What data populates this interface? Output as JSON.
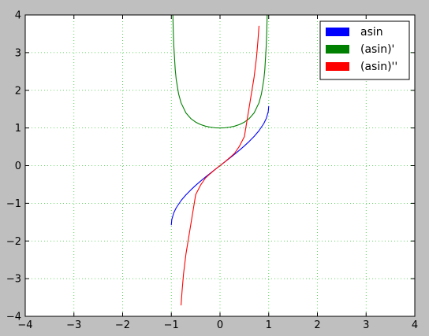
{
  "chart_data": {
    "type": "line",
    "title": "",
    "xlabel": "",
    "ylabel": "",
    "xlim": [
      -4,
      4
    ],
    "ylim": [
      -4,
      4
    ],
    "grid": true,
    "legend_position": "top-right",
    "x_ticks": [
      -4,
      -3,
      -2,
      -1,
      0,
      1,
      2,
      3,
      4
    ],
    "y_ticks": [
      -4,
      -3,
      -2,
      -1,
      0,
      1,
      2,
      3,
      4
    ],
    "x_tick_labels": [
      "−4",
      "−3",
      "−2",
      "−1",
      "0",
      "1",
      "2",
      "3",
      "4"
    ],
    "y_tick_labels": [
      "−4",
      "−3",
      "−2",
      "−1",
      "0",
      "1",
      "2",
      "3",
      "4"
    ],
    "series": [
      {
        "name": "asin",
        "color": "#0000ff",
        "x": [
          -1.0,
          -0.99,
          -0.95,
          -0.9,
          -0.8,
          -0.7,
          -0.6,
          -0.5,
          -0.4,
          -0.3,
          -0.2,
          -0.1,
          0.0,
          0.1,
          0.2,
          0.3,
          0.4,
          0.5,
          0.6,
          0.7,
          0.8,
          0.9,
          0.95,
          0.99,
          1.0
        ],
        "y": [
          -1.571,
          -1.429,
          -1.253,
          -1.12,
          -0.927,
          -0.775,
          -0.644,
          -0.524,
          -0.412,
          -0.305,
          -0.201,
          -0.1,
          0.0,
          0.1,
          0.201,
          0.305,
          0.412,
          0.524,
          0.644,
          0.775,
          0.927,
          1.12,
          1.253,
          1.429,
          1.571
        ]
      },
      {
        "name": "(asin)'",
        "color": "#008000",
        "x": [
          -0.969,
          -0.96,
          -0.95,
          -0.92,
          -0.9,
          -0.85,
          -0.8,
          -0.7,
          -0.6,
          -0.5,
          -0.4,
          -0.3,
          -0.2,
          -0.1,
          0.0,
          0.1,
          0.2,
          0.3,
          0.4,
          0.5,
          0.6,
          0.7,
          0.8,
          0.85,
          0.9,
          0.92,
          0.95,
          0.96,
          0.969
        ],
        "y": [
          4.03,
          3.57,
          3.2,
          2.55,
          2.29,
          1.9,
          1.667,
          1.4,
          1.25,
          1.155,
          1.091,
          1.048,
          1.021,
          1.005,
          1.0,
          1.005,
          1.021,
          1.048,
          1.091,
          1.155,
          1.25,
          1.4,
          1.667,
          1.9,
          2.29,
          2.55,
          3.2,
          3.57,
          4.03
        ]
      },
      {
        "name": "(asin)''",
        "color": "#ff0000",
        "x": [
          -0.8,
          -0.78,
          -0.75,
          -0.7,
          -0.6,
          -0.5,
          -0.4,
          -0.3,
          -0.2,
          -0.1,
          0.0,
          0.1,
          0.2,
          0.3,
          0.4,
          0.5,
          0.6,
          0.7,
          0.75,
          0.78,
          0.8
        ],
        "y": [
          -3.7,
          -3.34,
          -2.88,
          -2.35,
          -1.56,
          -0.77,
          -0.519,
          -0.329,
          -0.212,
          -0.101,
          0.0,
          0.101,
          0.212,
          0.329,
          0.519,
          0.77,
          1.56,
          2.35,
          2.88,
          3.34,
          3.7
        ]
      }
    ]
  }
}
